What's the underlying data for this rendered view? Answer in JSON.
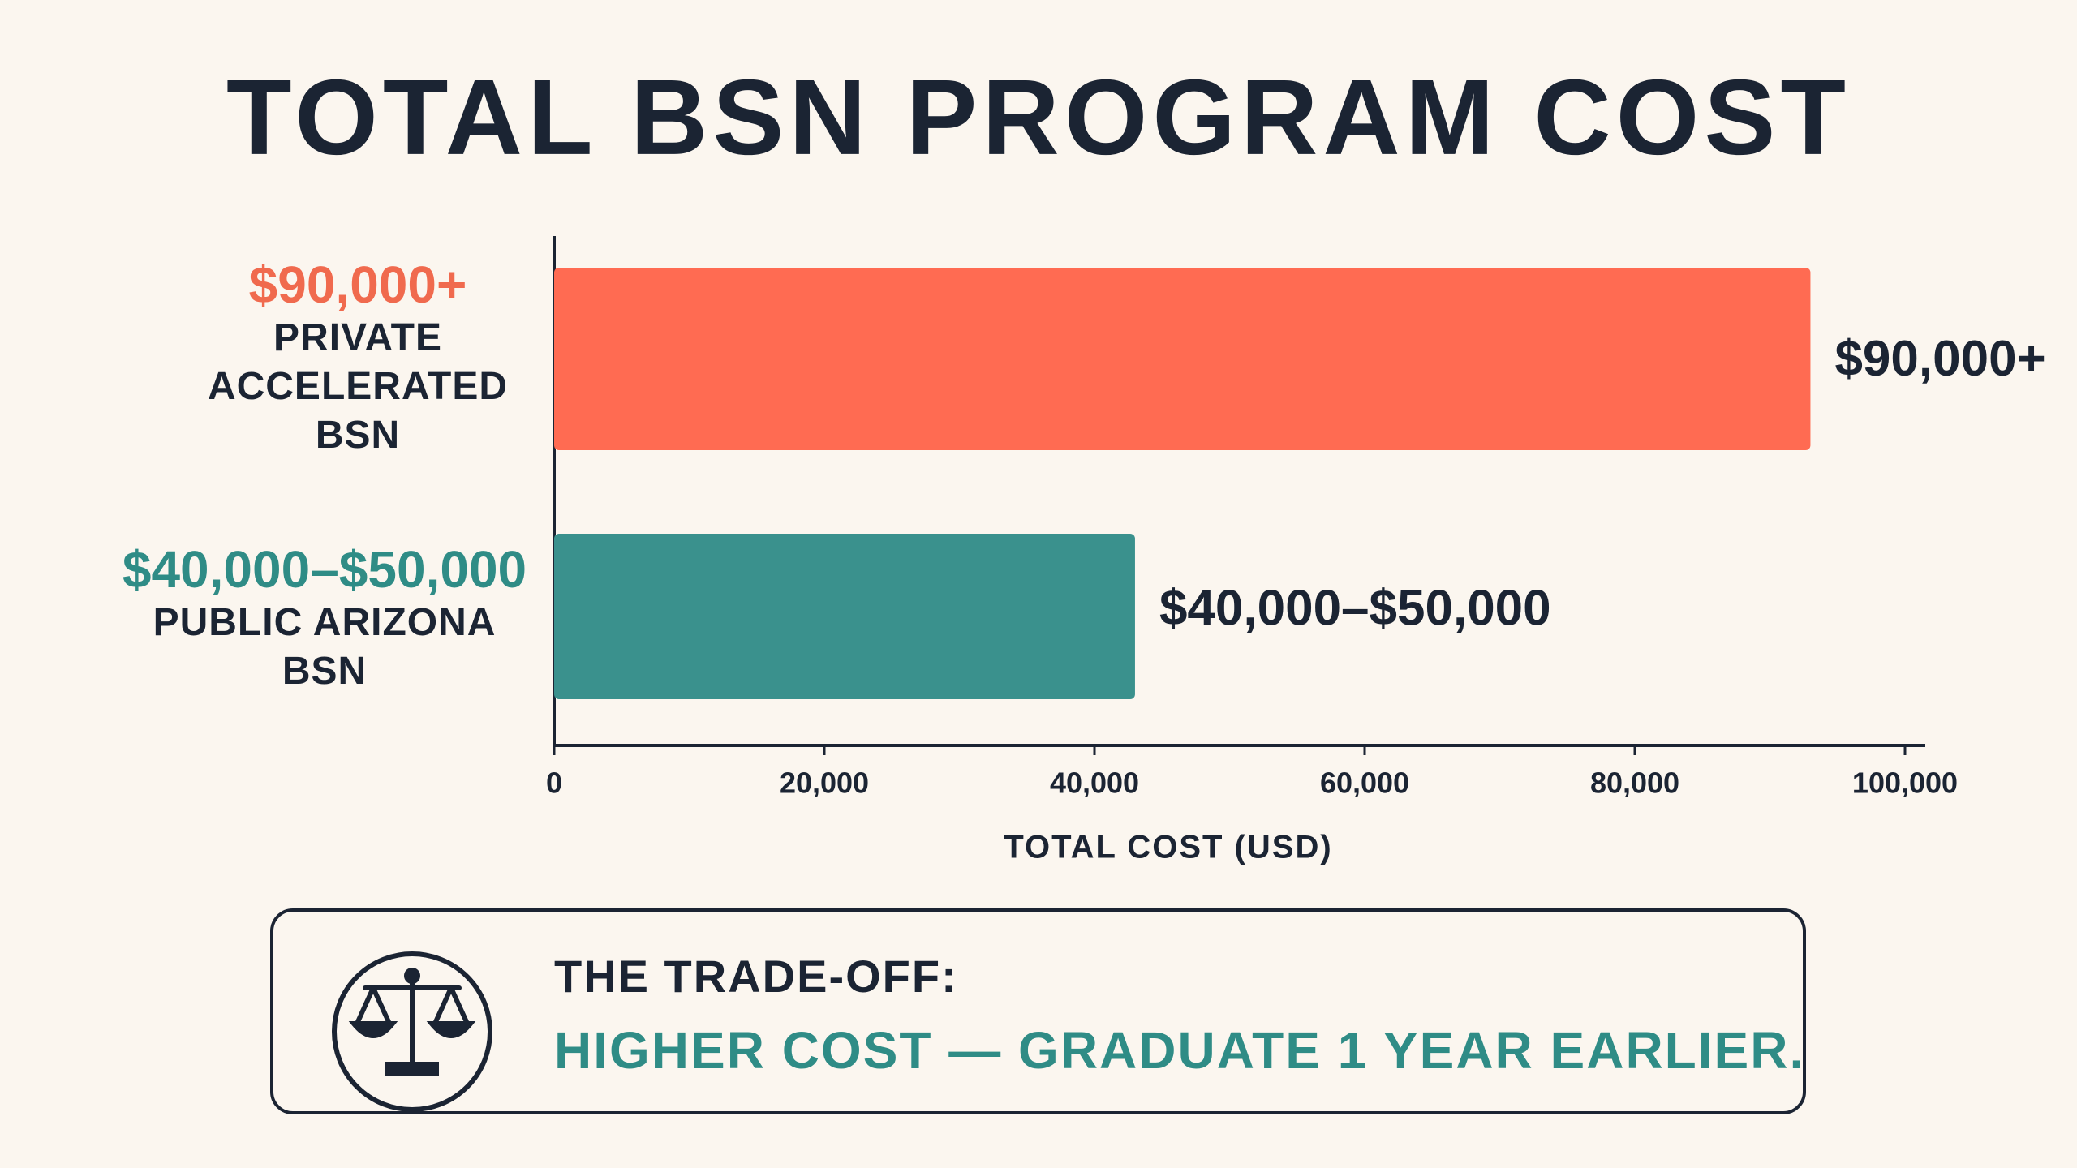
{
  "chart_data": {
    "type": "hbar",
    "title": "TOTAL BSN PROGRAM COST",
    "categories": [
      "PRIVATE ACCELERATED BSN",
      "PUBLIC ARIZONA BSN"
    ],
    "values": [
      93000,
      43000
    ],
    "value_labels": [
      "$90,000+",
      "$40,000–$50,000"
    ],
    "colors": [
      "#ff6b52",
      "#3a918d"
    ],
    "label_colors": [
      "#f06a4e",
      "#2f8c86"
    ],
    "xlim": [
      0,
      100000
    ],
    "xticks": [
      0,
      {
        "value": 20000,
        "label": "20,000"
      },
      {
        "value": 40000,
        "label": "40,000"
      },
      {
        "value": 60000,
        "label": "60,000"
      },
      {
        "value": 80000,
        "label": "80,000"
      },
      {
        "value": 100000,
        "label": "100,000"
      }
    ],
    "xlabel": "TOTAL COST (USD)",
    "grid": false
  },
  "callout": {
    "title": "THE TRADE-OFF:",
    "text": "HIGHER COST — GRADUATE 1 YEAR EARLIER."
  }
}
